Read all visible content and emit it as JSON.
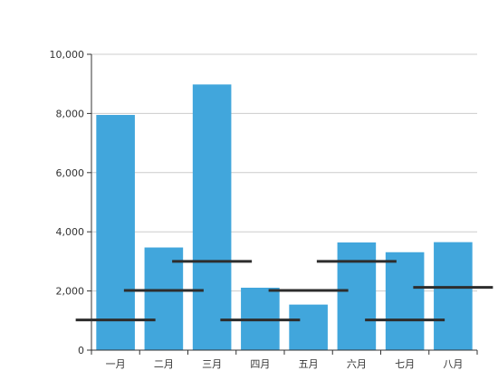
{
  "chart_data": {
    "type": "bar",
    "categories": [
      "一月",
      "二月",
      "三月",
      "四月",
      "五月",
      "六月",
      "七月",
      "八月"
    ],
    "series": [
      {
        "values": [
          7950,
          3470,
          8980,
          2110,
          1540,
          3640,
          3310,
          3650
        ]
      }
    ],
    "target_lines": [
      1020,
      2020,
      3000,
      1020,
      2020,
      3000,
      1020,
      2120
    ],
    "y_ticks": [
      "0",
      "2,000",
      "4,000",
      "6,000",
      "8,000",
      "10,000"
    ],
    "ylim": [
      0,
      10000
    ],
    "grid": true,
    "colors": {
      "bar": "#41a6dc",
      "target": "#2d2d2d",
      "grid": "#cccccc",
      "axis": "#333333"
    }
  }
}
